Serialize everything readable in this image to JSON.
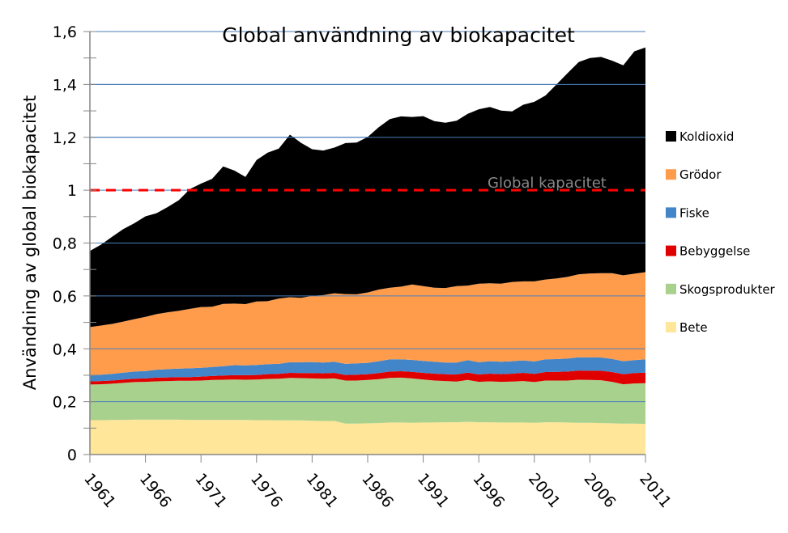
{
  "chart_data": {
    "type": "area",
    "stacked": true,
    "title": "Global  användning av biokapacitet",
    "xlabel": "",
    "ylabel": "Användning av global biokapacitet",
    "ylim": [
      0,
      1.6
    ],
    "xlim": [
      1961,
      2011
    ],
    "yticks": [
      0,
      0.2,
      0.4,
      0.6,
      0.8,
      1,
      1.2,
      1.4,
      1.6
    ],
    "ytick_labels": [
      "0",
      "0,2",
      "0,4",
      "0,6",
      "0,8",
      "1",
      "1,2",
      "1,4",
      "1,6"
    ],
    "xtick_labels": [
      "1961",
      "1966",
      "1971",
      "1976",
      "1981",
      "1986",
      "1991",
      "1996",
      "2001",
      "2006",
      "2011"
    ],
    "grid": "horizontal",
    "gridline_color": "#4a7ebb",
    "legend_position": "right",
    "reference_line": {
      "value": 1.0,
      "label": "Global kapacitet",
      "color": "#ff0000",
      "style": "dashed"
    },
    "x": [
      1961,
      1962,
      1963,
      1964,
      1965,
      1966,
      1967,
      1968,
      1969,
      1970,
      1971,
      1972,
      1973,
      1974,
      1975,
      1976,
      1977,
      1978,
      1979,
      1980,
      1981,
      1982,
      1983,
      1984,
      1985,
      1986,
      1987,
      1988,
      1989,
      1990,
      1991,
      1992,
      1993,
      1994,
      1995,
      1996,
      1997,
      1998,
      1999,
      2000,
      2001,
      2002,
      2003,
      2004,
      2005,
      2006,
      2007,
      2008,
      2009,
      2010,
      2011
    ],
    "series": [
      {
        "name": "Bete",
        "color": "#ffe699",
        "values": [
          0.13,
          0.13,
          0.131,
          0.131,
          0.132,
          0.132,
          0.132,
          0.132,
          0.132,
          0.131,
          0.131,
          0.131,
          0.131,
          0.131,
          0.131,
          0.13,
          0.13,
          0.129,
          0.129,
          0.129,
          0.128,
          0.127,
          0.127,
          0.117,
          0.117,
          0.118,
          0.119,
          0.121,
          0.121,
          0.12,
          0.121,
          0.121,
          0.122,
          0.122,
          0.124,
          0.122,
          0.122,
          0.121,
          0.121,
          0.121,
          0.12,
          0.122,
          0.122,
          0.121,
          0.12,
          0.12,
          0.119,
          0.118,
          0.117,
          0.117,
          0.116
        ]
      },
      {
        "name": "Skogsprodukter",
        "color": "#a9d18e",
        "values": [
          0.135,
          0.136,
          0.137,
          0.14,
          0.142,
          0.143,
          0.145,
          0.146,
          0.147,
          0.148,
          0.149,
          0.151,
          0.152,
          0.153,
          0.152,
          0.154,
          0.156,
          0.158,
          0.161,
          0.16,
          0.16,
          0.16,
          0.161,
          0.163,
          0.163,
          0.164,
          0.166,
          0.169,
          0.17,
          0.168,
          0.163,
          0.159,
          0.156,
          0.154,
          0.158,
          0.153,
          0.155,
          0.154,
          0.155,
          0.157,
          0.154,
          0.158,
          0.158,
          0.159,
          0.163,
          0.162,
          0.162,
          0.157,
          0.149,
          0.152,
          0.154
        ]
      },
      {
        "name": "Bebyggelse",
        "color": "#e00000",
        "values": [
          0.012,
          0.012,
          0.012,
          0.013,
          0.013,
          0.013,
          0.014,
          0.014,
          0.014,
          0.014,
          0.015,
          0.015,
          0.016,
          0.016,
          0.017,
          0.017,
          0.018,
          0.018,
          0.019,
          0.019,
          0.02,
          0.02,
          0.021,
          0.021,
          0.022,
          0.022,
          0.023,
          0.024,
          0.024,
          0.025,
          0.025,
          0.026,
          0.026,
          0.027,
          0.028,
          0.028,
          0.029,
          0.029,
          0.03,
          0.031,
          0.031,
          0.032,
          0.033,
          0.034,
          0.035,
          0.035,
          0.036,
          0.037,
          0.038,
          0.039,
          0.04
        ]
      },
      {
        "name": "Fiske",
        "color": "#4285c8",
        "values": [
          0.023,
          0.024,
          0.025,
          0.026,
          0.027,
          0.028,
          0.03,
          0.031,
          0.032,
          0.033,
          0.033,
          0.034,
          0.035,
          0.038,
          0.037,
          0.038,
          0.038,
          0.038,
          0.04,
          0.041,
          0.042,
          0.041,
          0.042,
          0.042,
          0.043,
          0.043,
          0.045,
          0.046,
          0.045,
          0.045,
          0.045,
          0.045,
          0.044,
          0.045,
          0.047,
          0.046,
          0.047,
          0.047,
          0.047,
          0.047,
          0.047,
          0.048,
          0.048,
          0.049,
          0.05,
          0.05,
          0.05,
          0.05,
          0.049,
          0.049,
          0.05
        ]
      },
      {
        "name": "Grödor",
        "color": "#ff9c4c",
        "values": [
          0.182,
          0.186,
          0.189,
          0.193,
          0.198,
          0.205,
          0.21,
          0.215,
          0.219,
          0.225,
          0.23,
          0.228,
          0.236,
          0.233,
          0.232,
          0.24,
          0.238,
          0.247,
          0.246,
          0.244,
          0.25,
          0.255,
          0.259,
          0.264,
          0.261,
          0.266,
          0.271,
          0.271,
          0.275,
          0.285,
          0.283,
          0.28,
          0.282,
          0.289,
          0.282,
          0.297,
          0.295,
          0.295,
          0.3,
          0.299,
          0.303,
          0.302,
          0.305,
          0.309,
          0.314,
          0.318,
          0.319,
          0.324,
          0.325,
          0.327,
          0.33
        ]
      },
      {
        "name": "Koldioxid",
        "color": "#000000",
        "values": [
          0.288,
          0.306,
          0.33,
          0.35,
          0.363,
          0.38,
          0.382,
          0.398,
          0.418,
          0.453,
          0.467,
          0.484,
          0.52,
          0.503,
          0.481,
          0.535,
          0.562,
          0.567,
          0.615,
          0.586,
          0.555,
          0.547,
          0.551,
          0.571,
          0.574,
          0.588,
          0.614,
          0.638,
          0.644,
          0.634,
          0.643,
          0.63,
          0.625,
          0.626,
          0.65,
          0.66,
          0.667,
          0.655,
          0.645,
          0.668,
          0.679,
          0.696,
          0.734,
          0.771,
          0.803,
          0.815,
          0.818,
          0.804,
          0.794,
          0.841,
          0.85
        ]
      }
    ]
  }
}
